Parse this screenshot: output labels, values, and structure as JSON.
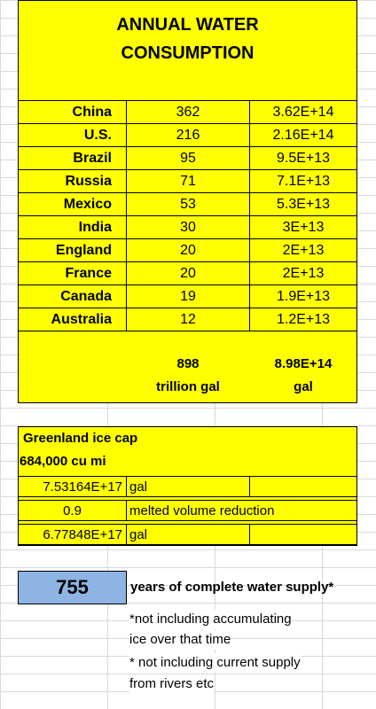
{
  "title_line1": "ANNUAL WATER",
  "title_line2": "CONSUMPTION",
  "rows": [
    {
      "country": "China",
      "trillion": "362",
      "gal": "3.62E+14"
    },
    {
      "country": "U.S.",
      "trillion": "216",
      "gal": "2.16E+14"
    },
    {
      "country": "Brazil",
      "trillion": "95",
      "gal": "9.5E+13"
    },
    {
      "country": "Russia",
      "trillion": "71",
      "gal": "7.1E+13"
    },
    {
      "country": "Mexico",
      "trillion": "53",
      "gal": "5.3E+13"
    },
    {
      "country": "India",
      "trillion": "30",
      "gal": "3E+13"
    },
    {
      "country": "England",
      "trillion": "20",
      "gal": "2E+13"
    },
    {
      "country": "France",
      "trillion": "20",
      "gal": "2E+13"
    },
    {
      "country": "Canada",
      "trillion": "19",
      "gal": "1.9E+13"
    },
    {
      "country": "Australia",
      "trillion": "12",
      "gal": "1.2E+13"
    }
  ],
  "totals": {
    "trillion_value": "898",
    "trillion_unit": "trillion gal",
    "gal_value": "8.98E+14",
    "gal_unit": "gal"
  },
  "greenland": {
    "title": "Greenland ice cap",
    "volume": "684,000 cu mi",
    "gallons": "7.53164E+17",
    "gallons_unit": "gal",
    "reduction_factor": "0.9",
    "reduction_label": "melted volume reduction",
    "melted_gallons": "6.77848E+17",
    "melted_unit": "gal"
  },
  "years": {
    "value": "755",
    "label": "years of complete water supply*"
  },
  "notes": [
    "*not including accumulating",
    " ice over that time",
    "* not including current supply",
    "from rivers etc"
  ]
}
